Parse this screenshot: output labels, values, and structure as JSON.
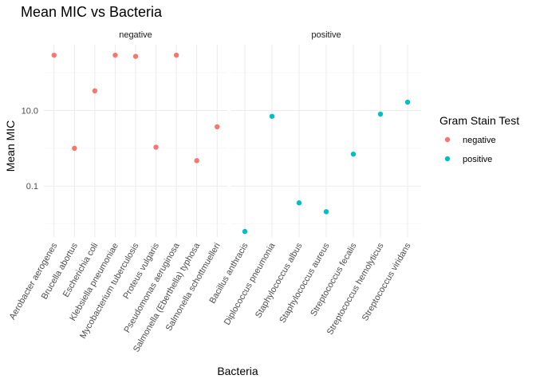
{
  "chart_data": {
    "type": "scatter",
    "title": "Mean MIC vs Bacteria",
    "xlabel": "Bacteria",
    "ylabel": "Mean MIC",
    "y_scale": "log10",
    "ylim": [
      0.0045,
      550
    ],
    "y_ticks": [
      {
        "value": 0.1,
        "label": "0.1"
      },
      {
        "value": 10,
        "label": "10.0"
      }
    ],
    "y_minor_ticks": [
      0.01,
      1,
      100
    ],
    "grid": true,
    "legend": {
      "title": "Gram Stain Test",
      "placement": "right",
      "entries": [
        {
          "label": "negative",
          "color": "#F8766D"
        },
        {
          "label": "positive",
          "color": "#00BFC4"
        }
      ]
    },
    "facets": [
      {
        "label": "negative",
        "color": "#F8766D",
        "categories": [
          "Aerobacter aerogenes",
          "Brucella abortus",
          "Escherichia coli",
          "Klebsiella pneumoniae",
          "Mycobacterium tuberculosis",
          "Proteus vulgaris",
          "Pseudomonas aeruginosa",
          "Salmonella (Eberthella) typhosa",
          "Salmonella schottmuelleri"
        ],
        "values": [
          290,
          1.0,
          33,
          290,
          270,
          1.07,
          290,
          0.47,
          3.7
        ]
      },
      {
        "label": "positive",
        "color": "#00BFC4",
        "categories": [
          "Bacillus anthracis",
          "Diplococcus pneumonia",
          "Staphylococcus albus",
          "Staphylococcus aureus",
          "Streptococcus fecalis",
          "Streptococcus hemolyticus",
          "Streptococcus viridans"
        ],
        "values": [
          0.0063,
          7.0,
          0.036,
          0.021,
          0.7,
          8.0,
          16.6
        ]
      }
    ]
  }
}
